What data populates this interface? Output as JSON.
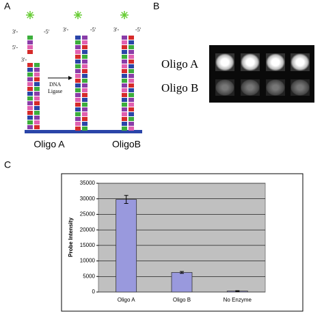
{
  "panels": {
    "a": "A",
    "b": "B",
    "c": "C"
  },
  "diagram": {
    "labels": [
      "3'-",
      "-5'",
      "5'-",
      "3'-",
      "3'-",
      "-5'",
      "3'-",
      "-5'"
    ],
    "ligase": [
      "DNA",
      "Ligase"
    ],
    "oligos": [
      "Oligo A",
      "OligoB"
    ]
  },
  "image": {
    "rows": [
      "Oligo A",
      "Oligo B"
    ]
  },
  "chart_data": {
    "type": "bar",
    "y_label": "Probe Intensity",
    "categories": [
      "Oligo A",
      "Oligo B",
      "No Enzyme"
    ],
    "values": [
      29800,
      6300,
      300
    ],
    "errors": [
      1300,
      300,
      100
    ],
    "color": "#9999dd",
    "ylim": [
      0,
      35000
    ],
    "yticks": [
      0,
      5000,
      10000,
      15000,
      20000,
      25000,
      30000,
      35000
    ],
    "grid": true
  }
}
